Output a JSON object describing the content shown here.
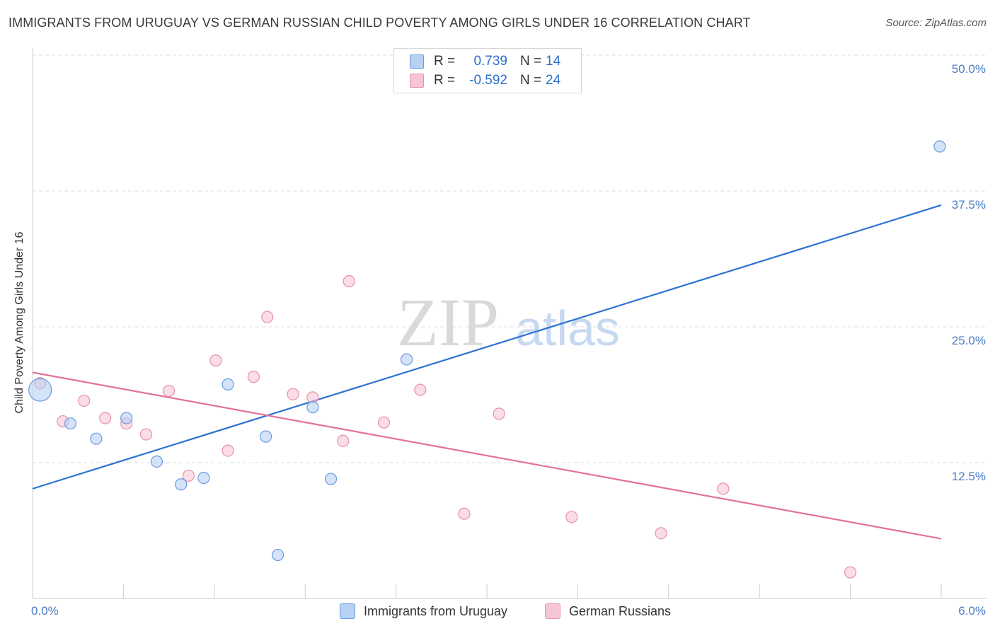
{
  "title": "IMMIGRANTS FROM URUGUAY VS GERMAN RUSSIAN CHILD POVERTY AMONG GIRLS UNDER 16 CORRELATION CHART",
  "source": "Source: ZipAtlas.com",
  "watermark": {
    "zip": "ZIP",
    "atlas": "atlas"
  },
  "legend": {
    "series1": {
      "r_label": "R =",
      "r_value": "0.739",
      "n_label": "N =",
      "n_value": "14"
    },
    "series2": {
      "r_label": "R =",
      "r_value": "-0.592",
      "n_label": "N =",
      "n_value": "24"
    }
  },
  "colors": {
    "blue_fill": "#b7d1f3",
    "blue_stroke": "#6a9be0",
    "blue_line": "#2d72d2",
    "pink_fill": "#f7c6d5",
    "pink_stroke": "#e890ab",
    "pink_line": "#e4709a",
    "grid": "#dddddd",
    "axis_text": "#4a7cc7"
  },
  "chart_data": {
    "type": "scatter",
    "title": "IMMIGRANTS FROM URUGUAY VS GERMAN RUSSIAN CHILD POVERTY AMONG GIRLS UNDER 16 CORRELATION CHART",
    "xlabel": "",
    "ylabel": "Child Poverty Among Girls Under 16",
    "xlim": [
      0,
      6
    ],
    "ylim": [
      0,
      50
    ],
    "x_tick_labels": [
      "0.0%",
      "6.0%"
    ],
    "y_tick_labels": [
      "12.5%",
      "25.0%",
      "37.5%",
      "50.0%"
    ],
    "y_ticks": [
      12.5,
      25.0,
      37.5,
      50.0
    ],
    "grid": true,
    "legend_position": "top-center",
    "series": [
      {
        "name": "Immigrants from Uruguay",
        "color": "#6a9be0",
        "points": [
          {
            "x": 0.05,
            "y": 19.2,
            "big": true
          },
          {
            "x": 0.25,
            "y": 16.1
          },
          {
            "x": 0.42,
            "y": 14.7
          },
          {
            "x": 0.62,
            "y": 16.6
          },
          {
            "x": 0.82,
            "y": 12.6
          },
          {
            "x": 0.98,
            "y": 10.5
          },
          {
            "x": 1.13,
            "y": 11.1
          },
          {
            "x": 1.29,
            "y": 19.7
          },
          {
            "x": 1.54,
            "y": 14.9
          },
          {
            "x": 1.62,
            "y": 4.0
          },
          {
            "x": 1.85,
            "y": 17.6
          },
          {
            "x": 1.97,
            "y": 11.0
          },
          {
            "x": 2.47,
            "y": 22.0
          },
          {
            "x": 5.99,
            "y": 41.6
          }
        ],
        "trend": {
          "x": [
            0.0,
            6.0
          ],
          "y": [
            10.1,
            36.2
          ]
        }
      },
      {
        "name": "German Russians",
        "color": "#e890ab",
        "points": [
          {
            "x": 0.05,
            "y": 19.8
          },
          {
            "x": 0.2,
            "y": 16.3
          },
          {
            "x": 0.34,
            "y": 18.2
          },
          {
            "x": 0.48,
            "y": 16.6
          },
          {
            "x": 0.62,
            "y": 16.1
          },
          {
            "x": 0.75,
            "y": 15.1
          },
          {
            "x": 0.9,
            "y": 19.1
          },
          {
            "x": 1.03,
            "y": 11.3
          },
          {
            "x": 1.21,
            "y": 21.9
          },
          {
            "x": 1.29,
            "y": 13.6
          },
          {
            "x": 1.46,
            "y": 20.4
          },
          {
            "x": 1.55,
            "y": 25.9
          },
          {
            "x": 1.72,
            "y": 18.8
          },
          {
            "x": 1.85,
            "y": 18.5
          },
          {
            "x": 2.05,
            "y": 14.5
          },
          {
            "x": 2.09,
            "y": 29.2
          },
          {
            "x": 2.32,
            "y": 16.2
          },
          {
            "x": 2.56,
            "y": 19.2
          },
          {
            "x": 2.85,
            "y": 7.8
          },
          {
            "x": 3.08,
            "y": 17.0
          },
          {
            "x": 3.56,
            "y": 7.5
          },
          {
            "x": 4.15,
            "y": 6.0
          },
          {
            "x": 4.56,
            "y": 10.1
          },
          {
            "x": 5.4,
            "y": 2.4
          }
        ],
        "trend": {
          "x": [
            0.0,
            6.0
          ],
          "y": [
            20.8,
            5.5
          ]
        }
      }
    ]
  }
}
